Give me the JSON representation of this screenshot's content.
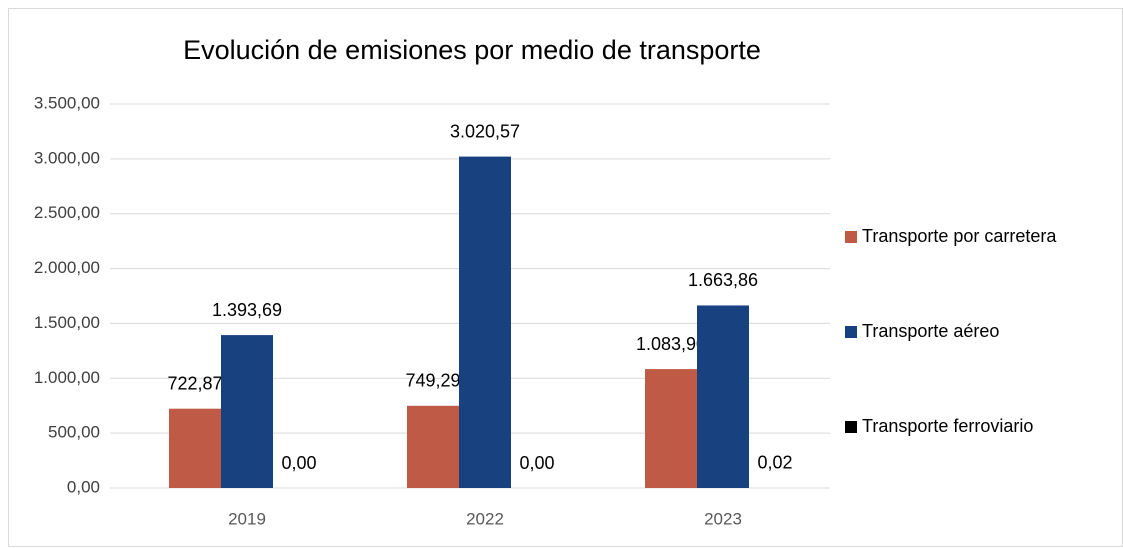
{
  "chart_data": {
    "type": "bar",
    "title": "Evolución de emisiones por medio de transporte",
    "categories": [
      "2019",
      "2022",
      "2023"
    ],
    "series": [
      {
        "name": "Transporte por carretera",
        "color": "#be5a45",
        "values": [
          722.87,
          749.29,
          1083.9
        ],
        "value_labels": [
          "722,87",
          "749,29",
          "1.083,90"
        ]
      },
      {
        "name": "Transporte aéreo",
        "color": "#17417f",
        "values": [
          1393.69,
          3020.57,
          1663.86
        ],
        "value_labels": [
          "1.393,69",
          "3.020,57",
          "1.663,86"
        ]
      },
      {
        "name": "Transporte ferroviario",
        "color": "#000000",
        "values": [
          0.0,
          0.0,
          0.02
        ],
        "value_labels": [
          "0,00",
          "0,00",
          "0,02"
        ]
      }
    ],
    "ylim": [
      0,
      3500
    ],
    "yticks": [
      {
        "value": 0,
        "label": "0,00"
      },
      {
        "value": 500,
        "label": "500,00"
      },
      {
        "value": 1000,
        "label": "1.000,00"
      },
      {
        "value": 1500,
        "label": "1.500,00"
      },
      {
        "value": 2000,
        "label": "2.000,00"
      },
      {
        "value": 2500,
        "label": "2.500,00"
      },
      {
        "value": 3000,
        "label": "3.000,00"
      },
      {
        "value": 3500,
        "label": "3.500,00"
      }
    ],
    "grid": true,
    "legend": "right"
  }
}
